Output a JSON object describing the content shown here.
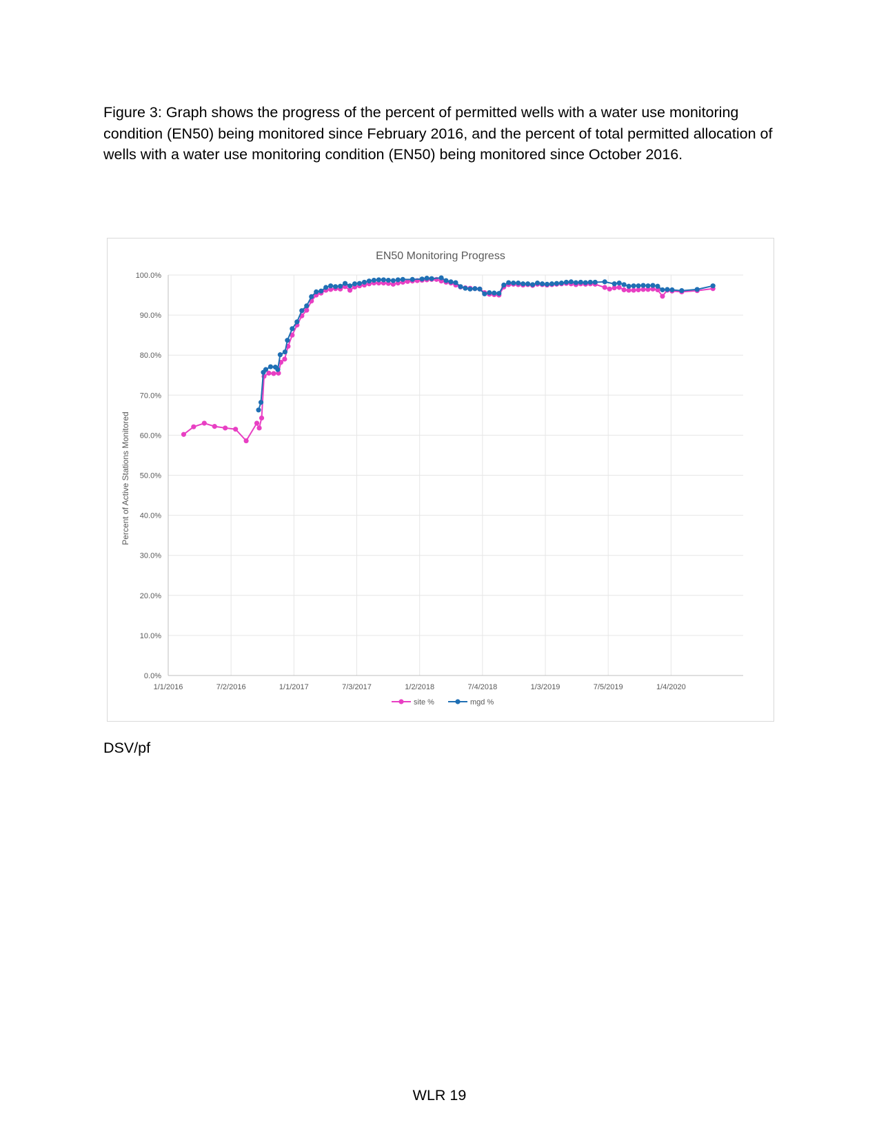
{
  "caption": "Figure 3: Graph shows the progress of the percent of permitted wells with a water use monitoring condition (EN50) being monitored since February 2016, and the percent of total permitted allocation of wells with a water use monitoring condition (EN50) being monitored since October 2016.",
  "initials": "DSV/pf",
  "page_number": "WLR 19",
  "chart_data": {
    "type": "line",
    "title": "EN50 Monitoring Progress",
    "xlabel": "",
    "ylabel": "Percent of Active Stations Monitored",
    "x_axis": {
      "min": "2016-01-01",
      "max": "2020-08-01",
      "tick_dates": [
        "2016-01-01",
        "2016-07-02",
        "2017-01-01",
        "2017-07-03",
        "2018-01-02",
        "2018-07-04",
        "2019-01-03",
        "2019-07-05",
        "2020-01-04"
      ],
      "tick_labels": [
        "1/1/2016",
        "7/2/2016",
        "1/1/2017",
        "7/3/2017",
        "1/2/2018",
        "7/4/2018",
        "1/3/2019",
        "7/5/2019",
        "1/4/2020"
      ]
    },
    "y_axis": {
      "min": 0,
      "max": 100,
      "ticks": [
        0,
        10,
        20,
        30,
        40,
        50,
        60,
        70,
        80,
        90,
        100
      ],
      "tick_labels": [
        "0.0%",
        "10.0%",
        "20.0%",
        "30.0%",
        "40.0%",
        "50.0%",
        "60.0%",
        "70.0%",
        "80.0%",
        "90.0%",
        "100.0%"
      ]
    },
    "grid": true,
    "legend": "bottom",
    "series": [
      {
        "name": "site %",
        "color": "#e83fc3",
        "points": [
          [
            "2016-02-15",
            60.2
          ],
          [
            "2016-03-15",
            62.1
          ],
          [
            "2016-04-15",
            63.0
          ],
          [
            "2016-05-15",
            62.2
          ],
          [
            "2016-06-15",
            61.8
          ],
          [
            "2016-07-15",
            61.5
          ],
          [
            "2016-08-15",
            58.6
          ],
          [
            "2016-09-15",
            63.0
          ],
          [
            "2016-09-22",
            61.8
          ],
          [
            "2016-09-29",
            64.3
          ],
          [
            "2016-10-06",
            74.7
          ],
          [
            "2016-10-20",
            75.5
          ],
          [
            "2016-11-03",
            75.4
          ],
          [
            "2016-11-17",
            75.5
          ],
          [
            "2016-11-24",
            78.2
          ],
          [
            "2016-12-05",
            79.0
          ],
          [
            "2016-12-15",
            82.2
          ],
          [
            "2016-12-27",
            85.0
          ],
          [
            "2017-01-10",
            87.5
          ],
          [
            "2017-01-24",
            89.8
          ],
          [
            "2017-02-07",
            91.2
          ],
          [
            "2017-02-21",
            93.5
          ],
          [
            "2017-03-07",
            95.0
          ],
          [
            "2017-03-21",
            95.5
          ],
          [
            "2017-04-04",
            96.2
          ],
          [
            "2017-04-18",
            96.4
          ],
          [
            "2017-05-02",
            96.6
          ],
          [
            "2017-05-16",
            96.5
          ],
          [
            "2017-05-30",
            97.1
          ],
          [
            "2017-06-13",
            96.2
          ],
          [
            "2017-06-27",
            97.0
          ],
          [
            "2017-07-11",
            97.3
          ],
          [
            "2017-07-25",
            97.5
          ],
          [
            "2017-08-08",
            97.8
          ],
          [
            "2017-08-22",
            98.0
          ],
          [
            "2017-09-05",
            98.0
          ],
          [
            "2017-09-19",
            98.0
          ],
          [
            "2017-10-03",
            97.9
          ],
          [
            "2017-10-17",
            97.7
          ],
          [
            "2017-10-31",
            98.0
          ],
          [
            "2017-11-14",
            98.2
          ],
          [
            "2017-11-28",
            98.4
          ],
          [
            "2017-12-12",
            98.5
          ],
          [
            "2017-12-26",
            98.6
          ],
          [
            "2018-01-09",
            98.7
          ],
          [
            "2018-01-23",
            98.8
          ],
          [
            "2018-02-06",
            98.9
          ],
          [
            "2018-02-20",
            98.9
          ],
          [
            "2018-03-06",
            98.5
          ],
          [
            "2018-03-20",
            98.2
          ],
          [
            "2018-04-03",
            98.0
          ],
          [
            "2018-04-17",
            97.5
          ],
          [
            "2018-05-01",
            97.0
          ],
          [
            "2018-05-15",
            96.8
          ],
          [
            "2018-05-29",
            96.7
          ],
          [
            "2018-06-12",
            96.6
          ],
          [
            "2018-06-26",
            96.5
          ],
          [
            "2018-07-10",
            95.6
          ],
          [
            "2018-07-24",
            95.2
          ],
          [
            "2018-08-07",
            95.1
          ],
          [
            "2018-08-21",
            95.0
          ],
          [
            "2018-09-04",
            97.0
          ],
          [
            "2018-09-18",
            97.6
          ],
          [
            "2018-10-02",
            97.7
          ],
          [
            "2018-10-16",
            97.6
          ],
          [
            "2018-10-30",
            97.5
          ],
          [
            "2018-11-13",
            97.6
          ],
          [
            "2018-11-27",
            97.4
          ],
          [
            "2018-12-11",
            97.7
          ],
          [
            "2018-12-25",
            97.6
          ],
          [
            "2019-01-08",
            97.5
          ],
          [
            "2019-01-22",
            97.6
          ],
          [
            "2019-02-05",
            97.7
          ],
          [
            "2019-02-19",
            97.8
          ],
          [
            "2019-03-05",
            97.9
          ],
          [
            "2019-03-19",
            97.8
          ],
          [
            "2019-04-02",
            97.6
          ],
          [
            "2019-04-16",
            97.8
          ],
          [
            "2019-04-30",
            97.7
          ],
          [
            "2019-05-14",
            97.8
          ],
          [
            "2019-05-28",
            97.7
          ],
          [
            "2019-06-25",
            96.9
          ],
          [
            "2019-07-09",
            96.5
          ],
          [
            "2019-07-23",
            96.8
          ],
          [
            "2019-08-06",
            96.9
          ],
          [
            "2019-08-20",
            96.3
          ],
          [
            "2019-09-03",
            96.2
          ],
          [
            "2019-09-17",
            96.2
          ],
          [
            "2019-10-01",
            96.3
          ],
          [
            "2019-10-15",
            96.4
          ],
          [
            "2019-10-29",
            96.4
          ],
          [
            "2019-11-12",
            96.5
          ],
          [
            "2019-11-26",
            96.3
          ],
          [
            "2019-12-10",
            94.7
          ],
          [
            "2019-12-24",
            96.2
          ],
          [
            "2020-01-07",
            96.0
          ],
          [
            "2020-02-04",
            95.8
          ],
          [
            "2020-03-20",
            96.1
          ],
          [
            "2020-05-05",
            96.6
          ]
        ]
      },
      {
        "name": "mgd %",
        "color": "#1f6fb4",
        "points": [
          [
            "2016-09-20",
            66.3
          ],
          [
            "2016-09-27",
            68.2
          ],
          [
            "2016-10-04",
            75.7
          ],
          [
            "2016-10-11",
            76.4
          ],
          [
            "2016-10-25",
            77.1
          ],
          [
            "2016-11-08",
            77.0
          ],
          [
            "2016-11-15",
            76.4
          ],
          [
            "2016-11-22",
            80.1
          ],
          [
            "2016-12-06",
            80.8
          ],
          [
            "2016-12-13",
            83.7
          ],
          [
            "2016-12-27",
            86.6
          ],
          [
            "2017-01-10",
            88.3
          ],
          [
            "2017-01-24",
            91.1
          ],
          [
            "2017-02-07",
            92.3
          ],
          [
            "2017-02-21",
            94.6
          ],
          [
            "2017-03-07",
            95.8
          ],
          [
            "2017-03-21",
            96.0
          ],
          [
            "2017-04-04",
            96.9
          ],
          [
            "2017-04-18",
            97.3
          ],
          [
            "2017-05-02",
            97.1
          ],
          [
            "2017-05-16",
            97.2
          ],
          [
            "2017-05-30",
            97.9
          ],
          [
            "2017-06-13",
            97.3
          ],
          [
            "2017-06-27",
            97.8
          ],
          [
            "2017-07-11",
            97.9
          ],
          [
            "2017-07-25",
            98.2
          ],
          [
            "2017-08-08",
            98.5
          ],
          [
            "2017-08-22",
            98.7
          ],
          [
            "2017-09-05",
            98.8
          ],
          [
            "2017-09-19",
            98.8
          ],
          [
            "2017-10-03",
            98.7
          ],
          [
            "2017-10-17",
            98.6
          ],
          [
            "2017-10-31",
            98.8
          ],
          [
            "2017-11-14",
            98.9
          ],
          [
            "2017-12-12",
            98.9
          ],
          [
            "2018-01-09",
            99.0
          ],
          [
            "2018-01-23",
            99.2
          ],
          [
            "2018-02-06",
            99.1
          ],
          [
            "2018-03-06",
            99.3
          ],
          [
            "2018-03-20",
            98.6
          ],
          [
            "2018-04-03",
            98.3
          ],
          [
            "2018-04-17",
            98.1
          ],
          [
            "2018-05-01",
            97.1
          ],
          [
            "2018-05-15",
            96.7
          ],
          [
            "2018-05-29",
            96.5
          ],
          [
            "2018-06-12",
            96.6
          ],
          [
            "2018-06-26",
            96.5
          ],
          [
            "2018-07-10",
            95.3
          ],
          [
            "2018-07-24",
            95.6
          ],
          [
            "2018-08-07",
            95.5
          ],
          [
            "2018-08-21",
            95.4
          ],
          [
            "2018-09-04",
            97.5
          ],
          [
            "2018-09-18",
            98.1
          ],
          [
            "2018-10-02",
            98.0
          ],
          [
            "2018-10-16",
            98.0
          ],
          [
            "2018-10-30",
            97.8
          ],
          [
            "2018-11-13",
            97.8
          ],
          [
            "2018-11-27",
            97.6
          ],
          [
            "2018-12-11",
            98.0
          ],
          [
            "2018-12-25",
            97.8
          ],
          [
            "2019-01-08",
            97.7
          ],
          [
            "2019-01-22",
            97.8
          ],
          [
            "2019-02-05",
            97.9
          ],
          [
            "2019-02-19",
            98.0
          ],
          [
            "2019-03-05",
            98.2
          ],
          [
            "2019-03-19",
            98.3
          ],
          [
            "2019-04-02",
            98.1
          ],
          [
            "2019-04-16",
            98.2
          ],
          [
            "2019-04-30",
            98.1
          ],
          [
            "2019-05-14",
            98.2
          ],
          [
            "2019-05-28",
            98.2
          ],
          [
            "2019-06-25",
            98.3
          ],
          [
            "2019-07-23",
            97.8
          ],
          [
            "2019-08-06",
            98.0
          ],
          [
            "2019-08-20",
            97.6
          ],
          [
            "2019-09-03",
            97.2
          ],
          [
            "2019-09-17",
            97.3
          ],
          [
            "2019-10-01",
            97.3
          ],
          [
            "2019-10-15",
            97.4
          ],
          [
            "2019-10-29",
            97.3
          ],
          [
            "2019-11-12",
            97.4
          ],
          [
            "2019-11-26",
            97.2
          ],
          [
            "2019-12-10",
            96.3
          ],
          [
            "2019-12-24",
            96.4
          ],
          [
            "2020-01-07",
            96.3
          ],
          [
            "2020-02-04",
            96.1
          ],
          [
            "2020-03-20",
            96.4
          ],
          [
            "2020-05-05",
            97.3
          ]
        ]
      }
    ]
  }
}
